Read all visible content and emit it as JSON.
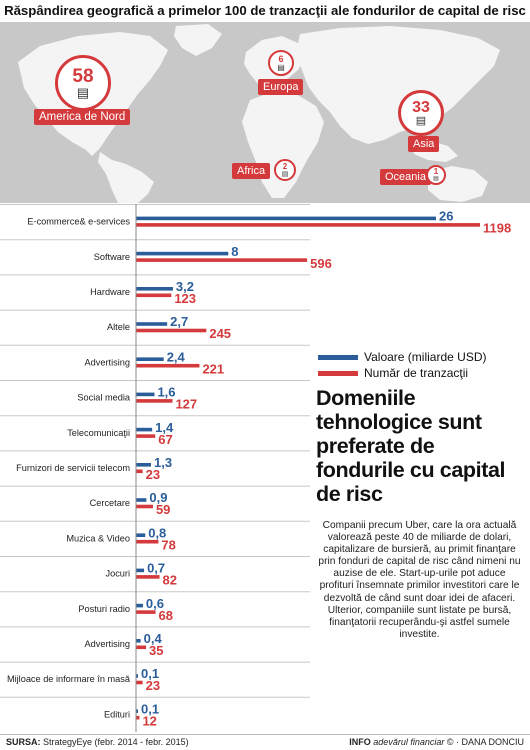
{
  "title": "Răspândirea geografică a primelor 100 de tranzacţii ale fondurilor de capital de risc",
  "map": {
    "regions": [
      {
        "name": "America de Nord",
        "count": "58",
        "icon": "money-stack-icon"
      },
      {
        "name": "Europa",
        "count": "6",
        "icon": "money-stack-icon"
      },
      {
        "name": "Asia",
        "count": "33",
        "icon": "money-stack-icon"
      },
      {
        "name": "Africa",
        "count": "2",
        "icon": "money-stack-icon"
      },
      {
        "name": "Oceania",
        "count": "1",
        "icon": "money-stack-icon"
      }
    ]
  },
  "chart_data": {
    "type": "bar",
    "orientation": "horizontal",
    "categories": [
      "E-commerce& e-services",
      "Software",
      "Hardware",
      "Altele",
      "Advertising",
      "Social media",
      "Telecomunicaţii",
      "Furnizori de servicii telecom",
      "Cercetare",
      "Muzica & Video",
      "Jocuri",
      "Posturi radio",
      "Advertising",
      "Mijloace de informare în masă",
      "Edituri"
    ],
    "series": [
      {
        "name": "Valoare (miliarde USD)",
        "color": "#2a5d9a",
        "values": [
          26,
          8,
          3.2,
          2.7,
          2.4,
          1.6,
          1.4,
          1.3,
          0.9,
          0.8,
          0.7,
          0.6,
          0.4,
          0.1,
          0.1
        ],
        "labels": [
          "26",
          "8",
          "3,2",
          "2,7",
          "2,4",
          "1,6",
          "1,4",
          "1,3",
          "0,9",
          "0,8",
          "0,7",
          "0,6",
          "0,4",
          "0,1",
          "0,1"
        ]
      },
      {
        "name": "Număr de tranzacţii",
        "color": "#d43a3c",
        "values": [
          1198,
          596,
          123,
          245,
          221,
          127,
          67,
          23,
          59,
          78,
          82,
          68,
          35,
          23,
          12
        ],
        "labels": [
          "1198",
          "596",
          "123",
          "245",
          "221",
          "127",
          "67",
          "23",
          "59",
          "78",
          "82",
          "68",
          "35",
          "23",
          "12"
        ]
      }
    ],
    "legend_position": "right"
  },
  "legend": {
    "value_label": "Valoare (miliarde USD)",
    "count_label": "Număr de tranzacţii",
    "value_color": "#2a5d9a",
    "count_color": "#d43a3c"
  },
  "headline": "Domeniile tehnologice sunt preferate de fondurile cu capital de risc",
  "body": "Companii precum Uber, care la ora actuală valorează peste 40 de miliarde de dolari, capitalizare de bursieră, au primit finanţare prin fonduri de capital de risc când nimeni nu auzise de ele. Start-up-urile pot aduce profituri însemnate primilor investitori care le dezvoltă de când sunt doar idei de afaceri. Ulterior, companiile sunt listate pe bursă, finanţatorii recuperându-şi astfel sumele investite.",
  "footer": {
    "source_label": "SURSA:",
    "source_text": "StrategyEye (febr. 2014 - febr. 2015)",
    "info_label": "INFO",
    "brand": "adevărul financiar",
    "credit": "© · DANA DONCIU"
  }
}
